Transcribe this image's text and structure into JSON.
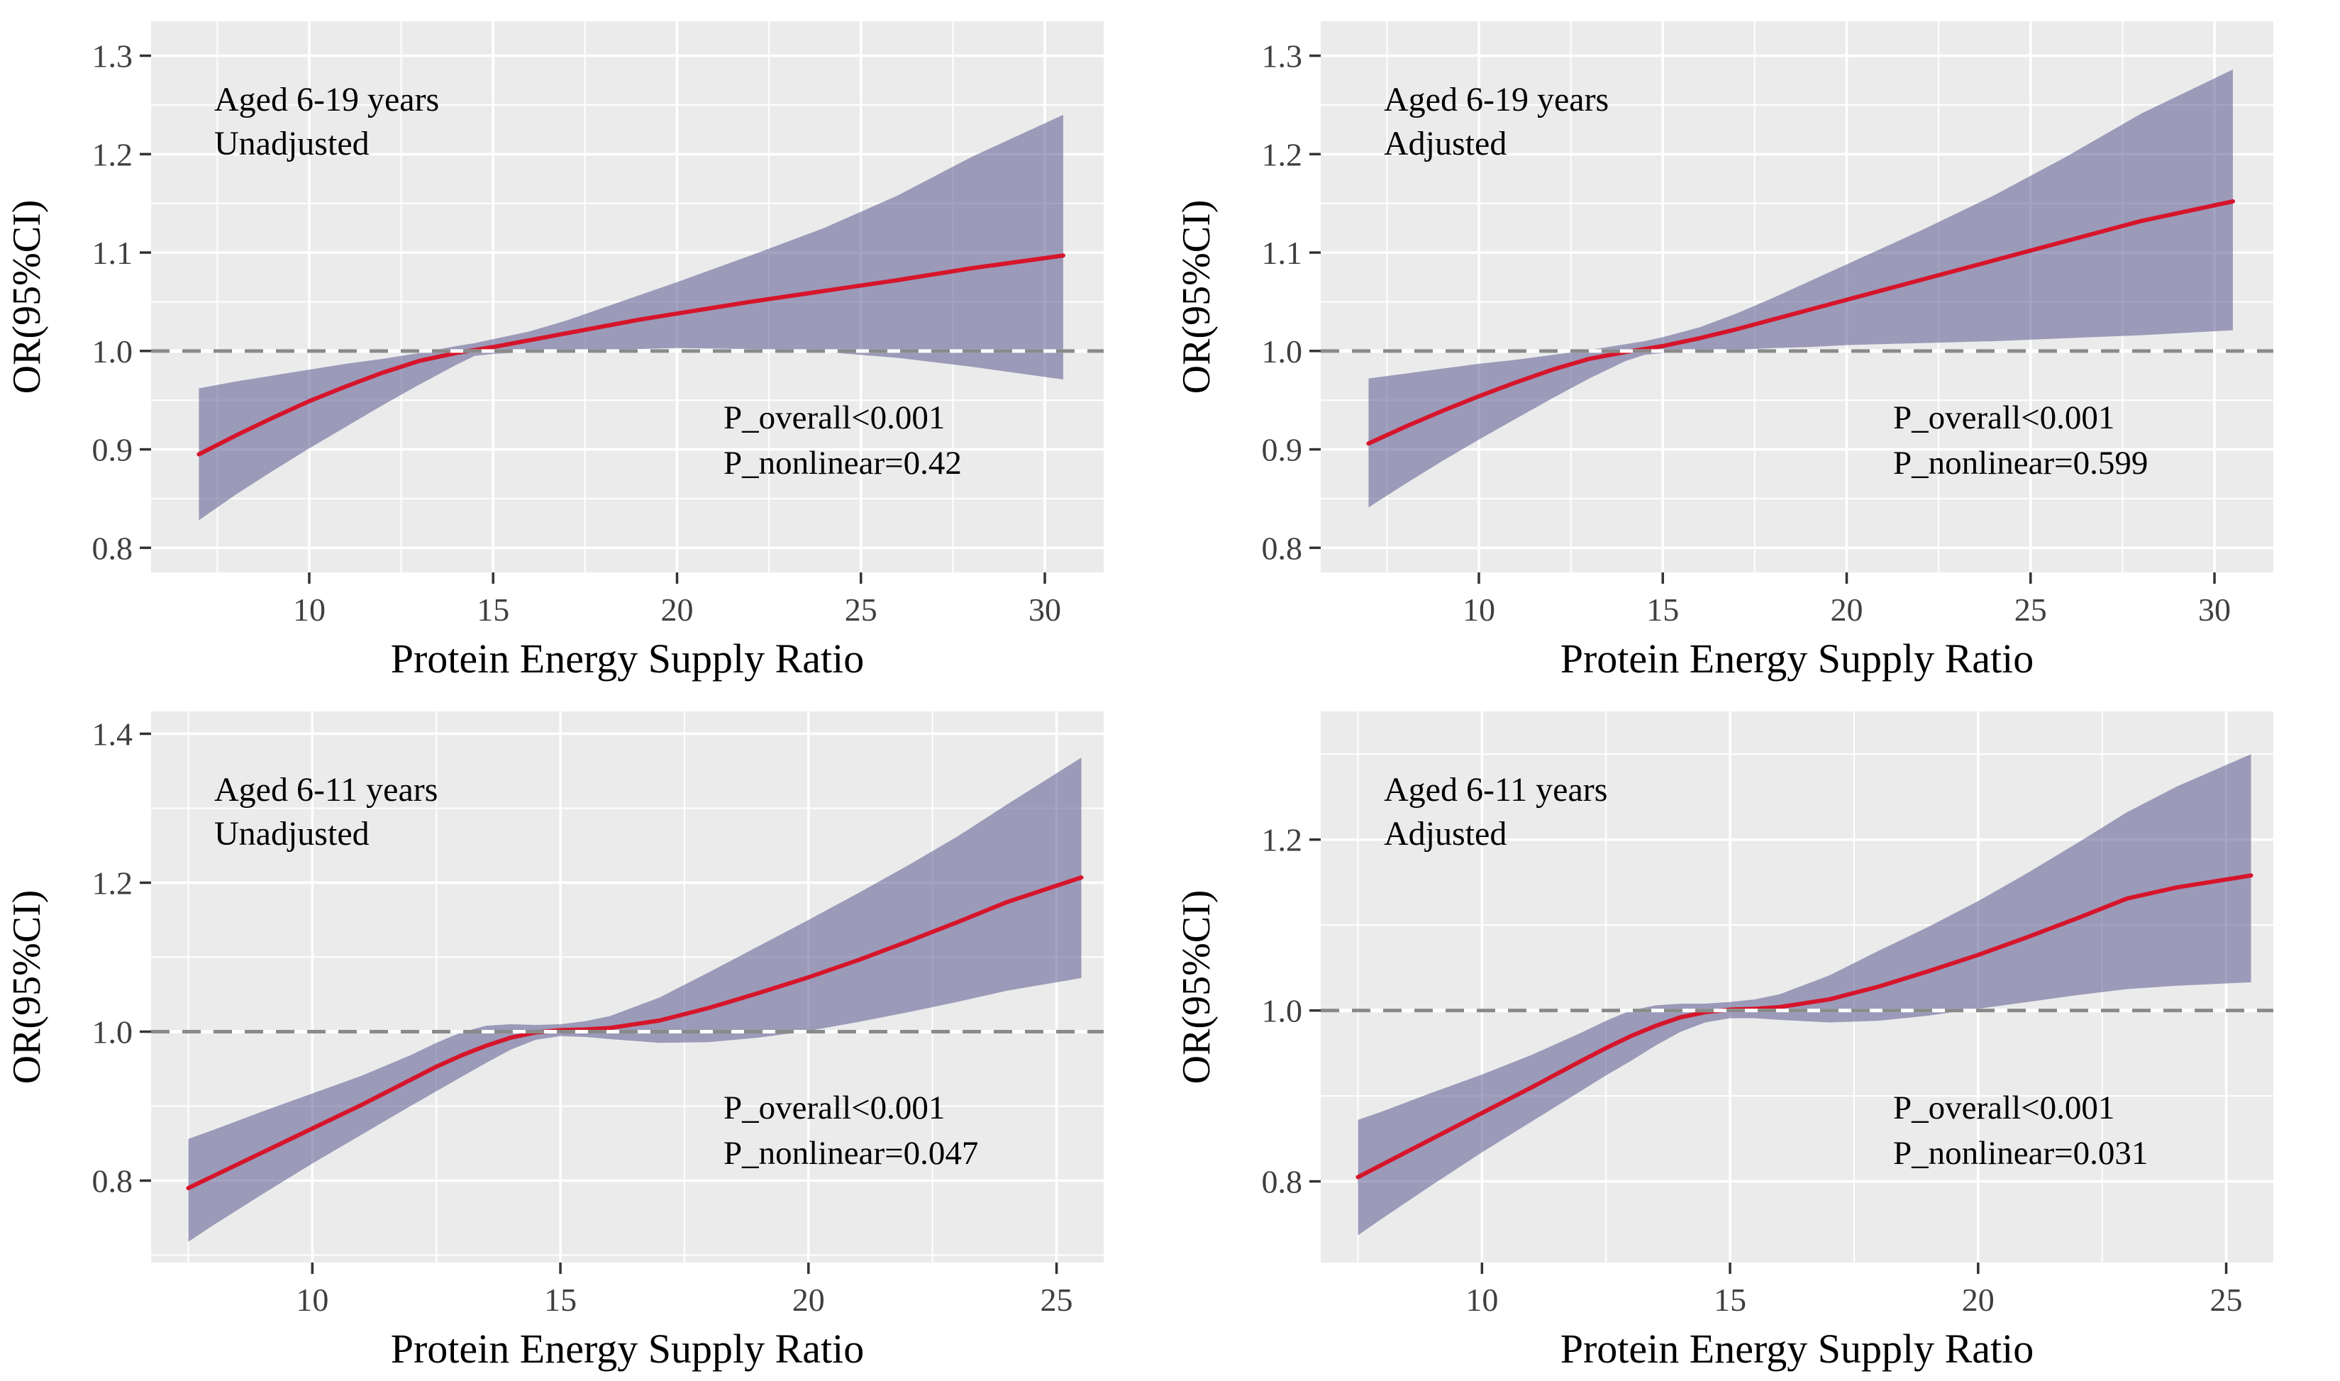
{
  "style": {
    "figure_bg": "#ffffff",
    "panel_bg": "#ebebeb",
    "grid_color": "#ffffff",
    "band_fill": "#5a5890",
    "band_opacity": 0.55,
    "curve_color": "#d6152b",
    "ref_dash_color": "#8a8a8a",
    "ref_base_color": "#ffffff",
    "tick_mark_color": "#333333",
    "tick_label_color": "#3f3f3f",
    "text_color": "#000000"
  },
  "chart_data": [
    {
      "type": "line",
      "title": "Aged 6-19 years, Unadjusted",
      "title_line1": "Aged 6-19 years",
      "title_line2": "Unadjusted",
      "p_overall": "P_overall<0.001",
      "p_nonlinear": "P_nonlinear=0.42",
      "xlabel": "Protein Energy Supply Ratio",
      "ylabel": "OR(95%CI)",
      "ref_line_y": 1.0,
      "grid": true,
      "legend": "none",
      "xlim": [
        5.7,
        31.6
      ],
      "ylim": [
        0.775,
        1.335
      ],
      "xticks": [
        10,
        15,
        20,
        25,
        30
      ],
      "yticks": [
        0.8,
        0.9,
        1.0,
        1.1,
        1.2,
        1.3
      ],
      "x": [
        7,
        8,
        9,
        10,
        11,
        12,
        13,
        14,
        14.5,
        15,
        16,
        17,
        18,
        19,
        20,
        22,
        24,
        26,
        28,
        30.5
      ],
      "series": [
        {
          "name": "OR",
          "values": [
            0.895,
            0.914,
            0.932,
            0.949,
            0.964,
            0.978,
            0.99,
            0.998,
            1.001,
            1.004,
            1.011,
            1.018,
            1.025,
            1.032,
            1.038,
            1.05,
            1.061,
            1.072,
            1.084,
            1.097
          ]
        },
        {
          "name": "lower 95% CI",
          "values": [
            0.828,
            0.854,
            0.878,
            0.901,
            0.923,
            0.945,
            0.966,
            0.986,
            0.995,
            0.997,
            0.999,
            1.0,
            1.001,
            1.002,
            1.003,
            1.002,
            0.999,
            0.993,
            0.984,
            0.971
          ]
        },
        {
          "name": "upper 95% CI",
          "values": [
            0.962,
            0.969,
            0.975,
            0.981,
            0.987,
            0.992,
            0.998,
            1.005,
            1.008,
            1.012,
            1.02,
            1.031,
            1.044,
            1.057,
            1.07,
            1.097,
            1.125,
            1.158,
            1.197,
            1.24
          ]
        }
      ]
    },
    {
      "type": "line",
      "title": "Aged 6-19 years, Adjusted",
      "title_line1": "Aged 6-19 years",
      "title_line2": "Adjusted",
      "p_overall": "P_overall<0.001",
      "p_nonlinear": "P_nonlinear=0.599",
      "xlabel": "Protein Energy Supply Ratio",
      "ylabel": "OR(95%CI)",
      "ref_line_y": 1.0,
      "grid": true,
      "legend": "none",
      "xlim": [
        5.7,
        31.6
      ],
      "ylim": [
        0.775,
        1.335
      ],
      "xticks": [
        10,
        15,
        20,
        25,
        30
      ],
      "yticks": [
        0.8,
        0.9,
        1.0,
        1.1,
        1.2,
        1.3
      ],
      "x": [
        7,
        8,
        9,
        10,
        11,
        12,
        13,
        14,
        14.5,
        15,
        16,
        17,
        18,
        19,
        20,
        22,
        24,
        26,
        28,
        30.5
      ],
      "series": [
        {
          "name": "OR",
          "values": [
            0.906,
            0.923,
            0.939,
            0.954,
            0.968,
            0.981,
            0.992,
            0.999,
            1.002,
            1.005,
            1.013,
            1.022,
            1.032,
            1.042,
            1.052,
            1.072,
            1.092,
            1.112,
            1.132,
            1.152
          ]
        },
        {
          "name": "lower 95% CI",
          "values": [
            0.841,
            0.865,
            0.888,
            0.91,
            0.931,
            0.952,
            0.972,
            0.99,
            0.996,
            0.998,
            1.0,
            1.001,
            1.003,
            1.004,
            1.006,
            1.008,
            1.01,
            1.013,
            1.016,
            1.021
          ]
        },
        {
          "name": "upper 95% CI",
          "values": [
            0.972,
            0.977,
            0.982,
            0.987,
            0.991,
            0.996,
            1.001,
            1.007,
            1.01,
            1.014,
            1.024,
            1.038,
            1.054,
            1.071,
            1.088,
            1.122,
            1.158,
            1.198,
            1.241,
            1.286
          ]
        }
      ]
    },
    {
      "type": "line",
      "title": "Aged 6-11 years, Unadjusted",
      "title_line1": "Aged 6-11 years",
      "title_line2": "Unadjusted",
      "p_overall": "P_overall<0.001",
      "p_nonlinear": "P_nonlinear=0.047",
      "xlabel": "Protein Energy Supply Ratio",
      "ylabel": "OR(95%CI)",
      "ref_line_y": 1.0,
      "grid": true,
      "legend": "none",
      "xlim": [
        6.75,
        25.95
      ],
      "ylim": [
        0.69,
        1.43
      ],
      "xticks": [
        10,
        15,
        20,
        25
      ],
      "yticks": [
        0.8,
        1.0,
        1.2,
        1.4
      ],
      "x": [
        7.5,
        8,
        9,
        10,
        11,
        12,
        12.5,
        13,
        13.5,
        14,
        14.5,
        15,
        15.5,
        16,
        17,
        18,
        19,
        20,
        21,
        22,
        23,
        24,
        25.5
      ],
      "series": [
        {
          "name": "OR",
          "values": [
            0.79,
            0.806,
            0.838,
            0.87,
            0.902,
            0.936,
            0.953,
            0.968,
            0.981,
            0.992,
            0.999,
            1.002,
            1.003,
            1.005,
            1.015,
            1.032,
            1.052,
            1.073,
            1.096,
            1.121,
            1.147,
            1.174,
            1.207
          ]
        },
        {
          "name": "lower 95% CI",
          "values": [
            0.718,
            0.74,
            0.782,
            0.823,
            0.862,
            0.901,
            0.92,
            0.939,
            0.958,
            0.976,
            0.989,
            0.994,
            0.993,
            0.99,
            0.985,
            0.986,
            0.992,
            1.001,
            1.013,
            1.026,
            1.04,
            1.055,
            1.072
          ]
        },
        {
          "name": "upper 95% CI",
          "values": [
            0.856,
            0.868,
            0.893,
            0.917,
            0.941,
            0.969,
            0.985,
            0.999,
            1.008,
            1.01,
            1.009,
            1.01,
            1.014,
            1.021,
            1.046,
            1.08,
            1.115,
            1.15,
            1.186,
            1.223,
            1.262,
            1.305,
            1.368
          ]
        }
      ]
    },
    {
      "type": "line",
      "title": "Aged 6-11 years, Adjusted",
      "title_line1": "Aged 6-11 years",
      "title_line2": "Adjusted",
      "p_overall": "P_overall<0.001",
      "p_nonlinear": "P_nonlinear=0.031",
      "xlabel": "Protein Energy Supply Ratio",
      "ylabel": "OR(95%CI)",
      "ref_line_y": 1.0,
      "grid": true,
      "legend": "none",
      "xlim": [
        6.75,
        25.95
      ],
      "ylim": [
        0.705,
        1.35
      ],
      "xticks": [
        10,
        15,
        20,
        25
      ],
      "yticks": [
        0.8,
        1.0,
        1.2
      ],
      "x": [
        7.5,
        8,
        9,
        10,
        11,
        12,
        12.5,
        13,
        13.5,
        14,
        14.5,
        15,
        15.5,
        16,
        17,
        18,
        19,
        20,
        21,
        22,
        23,
        24,
        25.5
      ],
      "series": [
        {
          "name": "OR",
          "values": [
            0.805,
            0.82,
            0.85,
            0.88,
            0.91,
            0.941,
            0.956,
            0.97,
            0.982,
            0.992,
            0.998,
            1.001,
            1.002,
            1.004,
            1.013,
            1.028,
            1.046,
            1.065,
            1.086,
            1.108,
            1.131,
            1.144,
            1.158
          ]
        },
        {
          "name": "lower 95% CI",
          "values": [
            0.737,
            0.757,
            0.796,
            0.834,
            0.87,
            0.906,
            0.924,
            0.941,
            0.959,
            0.975,
            0.986,
            0.991,
            0.991,
            0.989,
            0.986,
            0.988,
            0.994,
            1.002,
            1.01,
            1.018,
            1.025,
            1.029,
            1.033
          ]
        },
        {
          "name": "upper 95% CI",
          "values": [
            0.872,
            0.882,
            0.904,
            0.925,
            0.948,
            0.974,
            0.988,
            1.0,
            1.006,
            1.008,
            1.008,
            1.01,
            1.013,
            1.019,
            1.041,
            1.07,
            1.098,
            1.128,
            1.161,
            1.196,
            1.232,
            1.262,
            1.3
          ]
        }
      ]
    }
  ]
}
